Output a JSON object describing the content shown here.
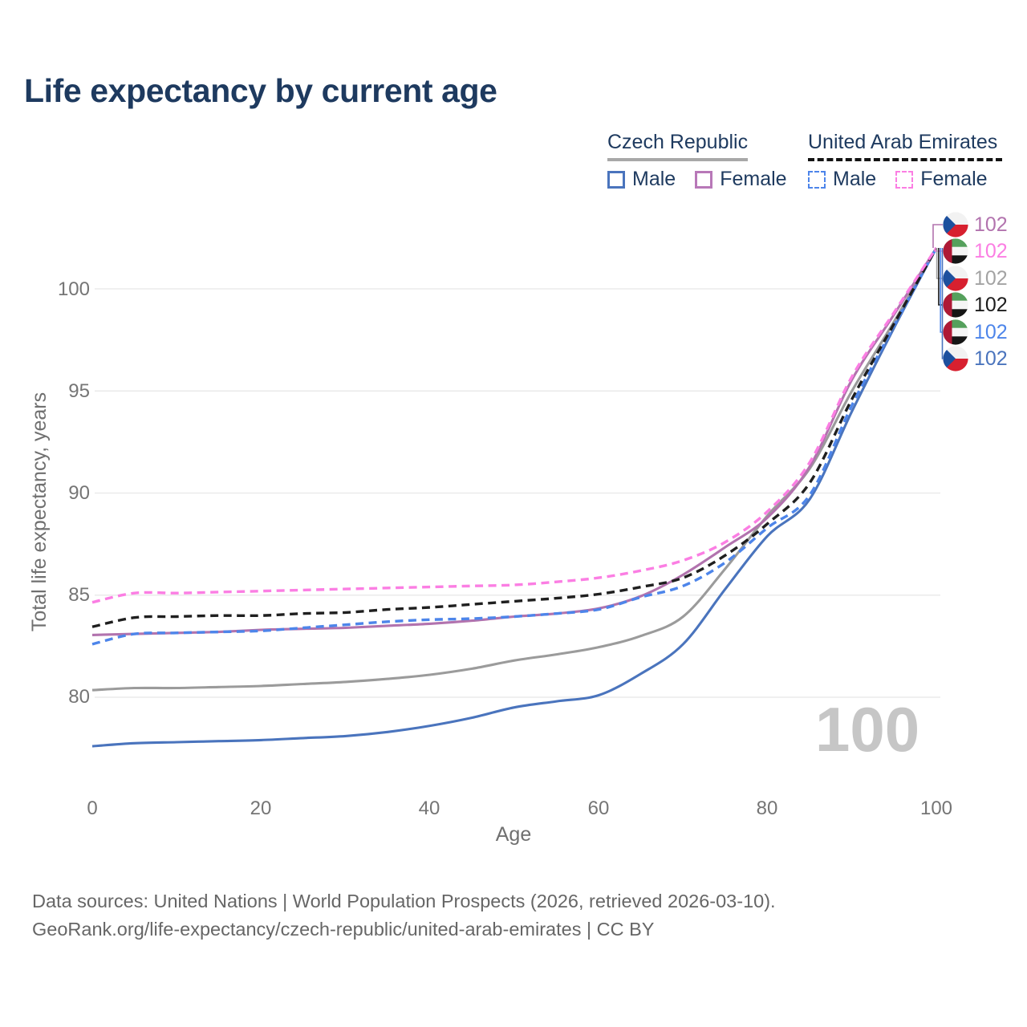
{
  "title": "Life expectancy by current age",
  "watermark": "100",
  "legend": {
    "groups": [
      {
        "label": "Czech Republic",
        "line_style": "solid",
        "underline_color": "#a8a8a8",
        "items": [
          {
            "label": "Male",
            "color": "#4a74bd",
            "dashed": false
          },
          {
            "label": "Female",
            "color": "#b878b8",
            "dashed": false
          }
        ]
      },
      {
        "label": "United Arab Emirates",
        "line_style": "dashed",
        "underline_color": "#141414",
        "items": [
          {
            "label": "Male",
            "color": "#4d85ea",
            "dashed": true
          },
          {
            "label": "Female",
            "color": "#fb7ee3",
            "dashed": true
          }
        ]
      }
    ]
  },
  "y_axis": {
    "title": "Total life expectancy, years",
    "ticks": [
      "100",
      "95",
      "90",
      "85",
      "80"
    ]
  },
  "x_axis": {
    "title": "Age",
    "ticks": [
      "0",
      "20",
      "40",
      "60",
      "80",
      "100"
    ]
  },
  "end_labels": [
    {
      "flag": "cz",
      "value": "102",
      "color": "#b273ae"
    },
    {
      "flag": "uae",
      "value": "102",
      "color": "#fb7ee3"
    },
    {
      "flag": "cz",
      "value": "102",
      "color": "#a3a3a3"
    },
    {
      "flag": "uae",
      "value": "102",
      "color": "#1c1c1c"
    },
    {
      "flag": "uae",
      "value": "102",
      "color": "#4d85ea"
    },
    {
      "flag": "cz",
      "value": "102",
      "color": "#4a74bd"
    }
  ],
  "footer": {
    "line1": "Data sources: United Nations | World Population Prospects (2026, retrieved 2026-03-10).",
    "line2": "GeoRank.org/life-expectancy/czech-republic/united-arab-emirates | CC BY"
  },
  "chart_data": {
    "type": "line",
    "title": "Life expectancy by current age",
    "xlabel": "Age",
    "ylabel": "Total life expectancy, years",
    "xlim": [
      0,
      100
    ],
    "ylim": [
      76.5,
      103
    ],
    "x_ticks": [
      0,
      20,
      40,
      60,
      80,
      100
    ],
    "y_ticks": [
      80,
      85,
      90,
      95,
      100
    ],
    "grid": "horizontal",
    "legend_position": "top-right",
    "x": [
      0,
      5,
      10,
      15,
      20,
      25,
      30,
      35,
      40,
      45,
      50,
      55,
      60,
      65,
      70,
      75,
      80,
      85,
      90,
      95,
      100
    ],
    "series": [
      {
        "name": "Czech Republic — Both sexes",
        "color": "#9b9b9b",
        "dashed": false,
        "values": [
          80.35,
          80.45,
          80.45,
          80.5,
          80.55,
          80.65,
          80.75,
          80.9,
          81.1,
          81.4,
          81.8,
          82.1,
          82.45,
          83.0,
          83.95,
          86.3,
          88.9,
          91.2,
          95.0,
          98.4,
          102
        ]
      },
      {
        "name": "Czech Republic — Male",
        "color": "#4a74bd",
        "dashed": false,
        "values": [
          77.6,
          77.75,
          77.8,
          77.85,
          77.9,
          78.0,
          78.1,
          78.3,
          78.6,
          79.0,
          79.5,
          79.8,
          80.1,
          81.15,
          82.6,
          85.3,
          87.9,
          89.7,
          94.0,
          98.1,
          102
        ]
      },
      {
        "name": "Czech Republic — Female",
        "color": "#b273ae",
        "dashed": false,
        "values": [
          83.05,
          83.1,
          83.15,
          83.2,
          83.3,
          83.35,
          83.4,
          83.5,
          83.6,
          83.75,
          83.95,
          84.1,
          84.35,
          84.95,
          86.0,
          87.35,
          88.8,
          91.3,
          95.55,
          98.75,
          102
        ]
      },
      {
        "name": "United Arab Emirates — Male",
        "color": "#4d85ea",
        "dashed": true,
        "values": [
          82.6,
          83.1,
          83.15,
          83.2,
          83.25,
          83.4,
          83.55,
          83.7,
          83.8,
          83.85,
          83.95,
          84.1,
          84.3,
          84.9,
          85.45,
          86.6,
          88.3,
          89.9,
          94.3,
          98.2,
          102
        ]
      },
      {
        "name": "United Arab Emirates — Both sexes",
        "color": "#1f1f1f",
        "dashed": true,
        "values": [
          83.45,
          83.9,
          83.95,
          84.0,
          84.0,
          84.1,
          84.15,
          84.3,
          84.4,
          84.55,
          84.7,
          84.85,
          85.05,
          85.4,
          85.85,
          86.95,
          88.5,
          90.5,
          94.6,
          98.3,
          102
        ]
      },
      {
        "name": "United Arab Emirates — Female",
        "color": "#fb7ee3",
        "dashed": true,
        "values": [
          84.65,
          85.1,
          85.1,
          85.15,
          85.2,
          85.25,
          85.3,
          85.35,
          85.4,
          85.45,
          85.5,
          85.65,
          85.85,
          86.2,
          86.7,
          87.6,
          89.1,
          91.5,
          95.7,
          98.85,
          102
        ]
      }
    ],
    "end_value_at_age_100": 102
  }
}
